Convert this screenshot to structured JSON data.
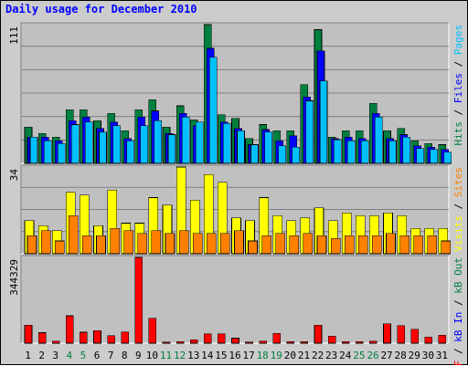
{
  "title": "Daily usage for December 2010",
  "colors": {
    "hits": "#008040",
    "files": "#0000ff",
    "pages": "#00c0ff",
    "visits": "#ffff00",
    "sites": "#ff8000",
    "kbin": "#0000ff",
    "kbout": "#008040",
    "kbf": "#ff0000",
    "weekend": "#008040",
    "weekday": "#000000",
    "panel_bg": "#c0c0c0",
    "frame_bg": "#cccccc"
  },
  "panels": {
    "usage": {
      "max_label": "111",
      "legend": [
        {
          "text": "Hits",
          "color": "#008040"
        },
        {
          "text": " / ",
          "color": "#000000"
        },
        {
          "text": "Files",
          "color": "#0000ff"
        },
        {
          "text": " / ",
          "color": "#000000"
        },
        {
          "text": "Pages",
          "color": "#00c0ff"
        }
      ]
    },
    "visits": {
      "max_label": "34",
      "legend": [
        {
          "text": "Visits",
          "color": "#ffff00"
        },
        {
          "text": " / ",
          "color": "#000000"
        },
        {
          "text": "Sites",
          "color": "#ff8000"
        }
      ]
    },
    "kbytes": {
      "max_label": "344329",
      "legend": [
        {
          "text": "kB F",
          "color": "#ff0000"
        },
        {
          "text": " / ",
          "color": "#000000"
        },
        {
          "text": "kB In",
          "color": "#0000ff"
        },
        {
          "text": " / ",
          "color": "#000000"
        },
        {
          "text": "kB Out",
          "color": "#008040"
        }
      ]
    }
  },
  "chart_data": {
    "type": "bar",
    "categories": [
      "1",
      "2",
      "3",
      "4",
      "5",
      "6",
      "7",
      "8",
      "9",
      "10",
      "11",
      "12",
      "13",
      "14",
      "15",
      "16",
      "17",
      "18",
      "19",
      "20",
      "21",
      "22",
      "23",
      "24",
      "25",
      "26",
      "27",
      "28",
      "29",
      "30",
      "31"
    ],
    "weekend_days": [
      "4",
      "5",
      "11",
      "12",
      "18",
      "19",
      "25",
      "26"
    ],
    "usage": {
      "ylim": [
        0,
        111
      ],
      "series": [
        {
          "name": "Hits",
          "values": [
            29,
            24,
            21,
            43,
            43,
            34,
            40,
            26,
            43,
            51,
            29,
            46,
            35,
            111,
            39,
            36,
            20,
            31,
            26,
            26,
            63,
            107,
            21,
            26,
            26,
            48,
            26,
            28,
            18,
            16,
            15
          ]
        },
        {
          "name": "Files",
          "values": [
            21,
            21,
            18,
            34,
            37,
            28,
            33,
            20,
            37,
            42,
            24,
            40,
            30,
            92,
            33,
            28,
            15,
            27,
            18,
            22,
            53,
            90,
            20,
            21,
            20,
            40,
            20,
            23,
            14,
            13,
            11
          ]
        },
        {
          "name": "Pages",
          "values": [
            21,
            18,
            16,
            31,
            33,
            25,
            30,
            18,
            30,
            34,
            23,
            37,
            33,
            85,
            32,
            26,
            15,
            25,
            14,
            13,
            50,
            66,
            19,
            18,
            18,
            37,
            18,
            21,
            12,
            11,
            9
          ]
        }
      ]
    },
    "visits": {
      "ylim": [
        0,
        34
      ],
      "series": [
        {
          "name": "Visits",
          "values": [
            13,
            11,
            9,
            24,
            23,
            11,
            25,
            12,
            12,
            22,
            19,
            34,
            21,
            31,
            28,
            14,
            13,
            22,
            15,
            13,
            14,
            18,
            13,
            16,
            15,
            15,
            16,
            15,
            10,
            10,
            10
          ]
        },
        {
          "name": "Sites",
          "values": [
            7,
            9,
            5,
            15,
            7,
            7,
            10,
            9,
            8,
            9,
            8,
            9,
            8,
            8,
            8,
            9,
            5,
            7,
            8,
            7,
            8,
            7,
            6,
            7,
            7,
            7,
            8,
            7,
            7,
            7,
            5
          ]
        }
      ]
    },
    "kbytes": {
      "ylim": [
        0,
        344329
      ],
      "series": [
        {
          "name": "kB F",
          "values": [
            72000,
            42000,
            8000,
            110000,
            44000,
            50000,
            30000,
            45000,
            344329,
            100000,
            5000,
            6000,
            14000,
            38000,
            38000,
            20000,
            5000,
            8000,
            40000,
            6000,
            6000,
            72000,
            28000,
            6000,
            6000,
            8000,
            78000,
            70000,
            56000,
            24000,
            32000
          ]
        },
        {
          "name": "kB In",
          "values": [
            0,
            0,
            0,
            0,
            0,
            0,
            0,
            0,
            0,
            0,
            0,
            0,
            0,
            0,
            0,
            0,
            0,
            0,
            0,
            0,
            0,
            0,
            0,
            0,
            0,
            0,
            0,
            0,
            0,
            0,
            0
          ]
        },
        {
          "name": "kB Out",
          "values": [
            0,
            0,
            0,
            0,
            0,
            0,
            0,
            0,
            0,
            0,
            0,
            0,
            0,
            0,
            0,
            0,
            0,
            0,
            0,
            0,
            0,
            0,
            0,
            0,
            0,
            0,
            0,
            0,
            0,
            0,
            0
          ]
        }
      ]
    }
  }
}
